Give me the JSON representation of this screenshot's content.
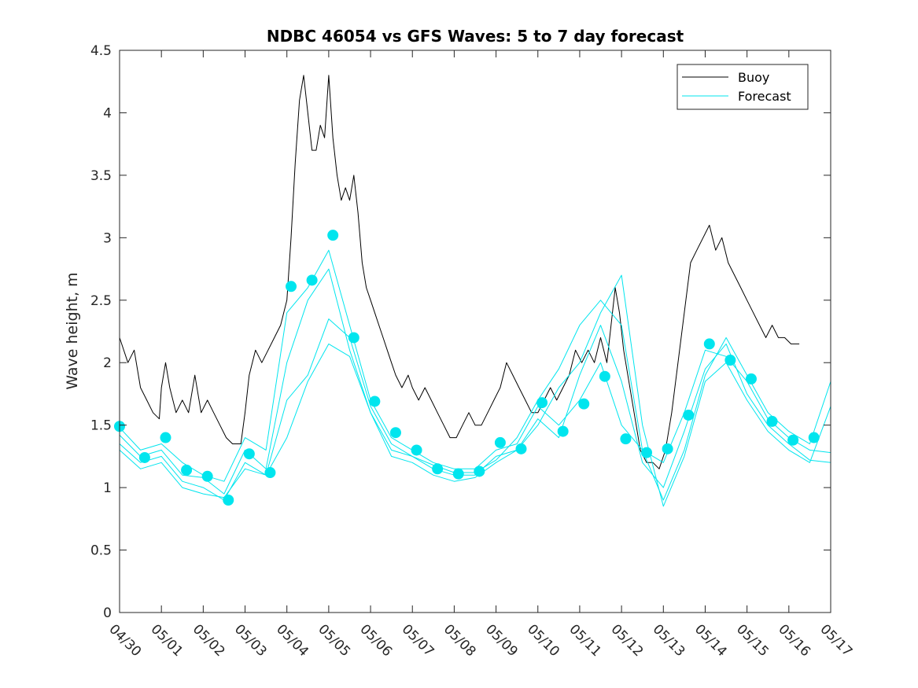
{
  "chart_data": {
    "type": "line",
    "title": "NDBC 46054 vs GFS Waves: 5 to 7 day forecast",
    "xlabel": "",
    "ylabel": "Wave height, m",
    "ylim": [
      0,
      4.5
    ],
    "yticks": [
      "0",
      "0.5",
      "1",
      "1.5",
      "2",
      "2.5",
      "3",
      "3.5",
      "4",
      "4.5"
    ],
    "xlim": [
      0,
      17
    ],
    "xtick_labels": [
      "04/30",
      "05/01",
      "05/02",
      "05/03",
      "05/04",
      "05/05",
      "05/06",
      "05/07",
      "05/08",
      "05/09",
      "05/10",
      "05/11",
      "05/12",
      "05/13",
      "05/14",
      "05/15",
      "05/16",
      "05/17"
    ],
    "grid": false,
    "legend": {
      "position": "top-right",
      "entries": [
        {
          "label": "Buoy",
          "color": "#000000"
        },
        {
          "label": "Forecast",
          "color": "#00e5ee"
        }
      ]
    },
    "series": [
      {
        "name": "Buoy",
        "color": "#000000",
        "points": [
          [
            0.0,
            2.2
          ],
          [
            0.2,
            2.0
          ],
          [
            0.35,
            2.1
          ],
          [
            0.5,
            1.8
          ],
          [
            0.65,
            1.7
          ],
          [
            0.8,
            1.6
          ],
          [
            0.95,
            1.55
          ],
          [
            1.0,
            1.8
          ],
          [
            1.1,
            2.0
          ],
          [
            1.2,
            1.8
          ],
          [
            1.35,
            1.6
          ],
          [
            1.5,
            1.7
          ],
          [
            1.65,
            1.6
          ],
          [
            1.8,
            1.9
          ],
          [
            1.95,
            1.6
          ],
          [
            2.1,
            1.7
          ],
          [
            2.25,
            1.6
          ],
          [
            2.4,
            1.5
          ],
          [
            2.55,
            1.4
          ],
          [
            2.7,
            1.35
          ],
          [
            2.9,
            1.35
          ],
          [
            3.0,
            1.6
          ],
          [
            3.1,
            1.9
          ],
          [
            3.25,
            2.1
          ],
          [
            3.4,
            2.0
          ],
          [
            3.55,
            2.1
          ],
          [
            3.7,
            2.2
          ],
          [
            3.85,
            2.3
          ],
          [
            4.0,
            2.5
          ],
          [
            4.1,
            3.0
          ],
          [
            4.2,
            3.6
          ],
          [
            4.3,
            4.1
          ],
          [
            4.4,
            4.3
          ],
          [
            4.5,
            4.0
          ],
          [
            4.6,
            3.7
          ],
          [
            4.7,
            3.7
          ],
          [
            4.8,
            3.9
          ],
          [
            4.9,
            3.8
          ],
          [
            5.0,
            4.3
          ],
          [
            5.1,
            3.8
          ],
          [
            5.2,
            3.5
          ],
          [
            5.3,
            3.3
          ],
          [
            5.4,
            3.4
          ],
          [
            5.5,
            3.3
          ],
          [
            5.6,
            3.5
          ],
          [
            5.7,
            3.2
          ],
          [
            5.8,
            2.8
          ],
          [
            5.9,
            2.6
          ],
          [
            6.0,
            2.5
          ],
          [
            6.1,
            2.4
          ],
          [
            6.2,
            2.3
          ],
          [
            6.3,
            2.2
          ],
          [
            6.4,
            2.1
          ],
          [
            6.5,
            2.0
          ],
          [
            6.6,
            1.9
          ],
          [
            6.75,
            1.8
          ],
          [
            6.9,
            1.9
          ],
          [
            7.0,
            1.8
          ],
          [
            7.15,
            1.7
          ],
          [
            7.3,
            1.8
          ],
          [
            7.45,
            1.7
          ],
          [
            7.6,
            1.6
          ],
          [
            7.75,
            1.5
          ],
          [
            7.9,
            1.4
          ],
          [
            8.05,
            1.4
          ],
          [
            8.2,
            1.5
          ],
          [
            8.35,
            1.6
          ],
          [
            8.5,
            1.5
          ],
          [
            8.65,
            1.5
          ],
          [
            8.8,
            1.6
          ],
          [
            8.95,
            1.7
          ],
          [
            9.1,
            1.8
          ],
          [
            9.25,
            2.0
          ],
          [
            9.4,
            1.9
          ],
          [
            9.55,
            1.8
          ],
          [
            9.7,
            1.7
          ],
          [
            9.85,
            1.6
          ],
          [
            10.0,
            1.6
          ],
          [
            10.15,
            1.7
          ],
          [
            10.3,
            1.8
          ],
          [
            10.45,
            1.7
          ],
          [
            10.6,
            1.8
          ],
          [
            10.75,
            1.9
          ],
          [
            10.9,
            2.1
          ],
          [
            11.05,
            2.0
          ],
          [
            11.2,
            2.1
          ],
          [
            11.35,
            2.0
          ],
          [
            11.5,
            2.2
          ],
          [
            11.65,
            2.0
          ],
          [
            11.75,
            2.3
          ],
          [
            11.85,
            2.6
          ],
          [
            11.95,
            2.4
          ],
          [
            12.05,
            2.1
          ],
          [
            12.15,
            1.9
          ],
          [
            12.3,
            1.6
          ],
          [
            12.45,
            1.3
          ],
          [
            12.6,
            1.2
          ],
          [
            12.75,
            1.2
          ],
          [
            12.9,
            1.15
          ],
          [
            13.05,
            1.3
          ],
          [
            13.2,
            1.6
          ],
          [
            13.35,
            2.0
          ],
          [
            13.5,
            2.4
          ],
          [
            13.65,
            2.8
          ],
          [
            13.8,
            2.9
          ],
          [
            13.95,
            3.0
          ],
          [
            14.1,
            3.1
          ],
          [
            14.25,
            2.9
          ],
          [
            14.4,
            3.0
          ],
          [
            14.55,
            2.8
          ],
          [
            14.7,
            2.7
          ],
          [
            14.85,
            2.6
          ],
          [
            15.0,
            2.5
          ],
          [
            15.15,
            2.4
          ],
          [
            15.3,
            2.3
          ],
          [
            15.45,
            2.2
          ],
          [
            15.6,
            2.3
          ],
          [
            15.75,
            2.2
          ],
          [
            15.9,
            2.2
          ],
          [
            16.05,
            2.15
          ],
          [
            16.25,
            2.15
          ]
        ]
      },
      {
        "name": "",
        "color": "#00e5ee",
        "points": [
          [
            0.0,
            1.48
          ],
          [
            0.5,
            1.3
          ],
          [
            1.0,
            1.35
          ],
          [
            1.5,
            1.2
          ],
          [
            2.0,
            1.1
          ],
          [
            2.5,
            1.05
          ],
          [
            3.0,
            1.4
          ],
          [
            3.5,
            1.3
          ],
          [
            4.0,
            2.4
          ],
          [
            4.5,
            2.6
          ],
          [
            5.0,
            2.9
          ],
          [
            5.5,
            2.3
          ],
          [
            6.0,
            1.7
          ],
          [
            6.5,
            1.4
          ],
          [
            7.0,
            1.3
          ],
          [
            7.5,
            1.2
          ],
          [
            8.0,
            1.15
          ],
          [
            8.5,
            1.15
          ],
          [
            9.0,
            1.3
          ],
          [
            9.5,
            1.35
          ],
          [
            10.0,
            1.65
          ],
          [
            10.5,
            1.5
          ],
          [
            11.0,
            1.7
          ],
          [
            11.5,
            2.0
          ],
          [
            12.0,
            1.5
          ],
          [
            12.5,
            1.3
          ],
          [
            13.0,
            1.2
          ],
          [
            13.5,
            1.6
          ],
          [
            14.0,
            2.1
          ],
          [
            14.5,
            2.05
          ],
          [
            15.0,
            1.85
          ],
          [
            15.5,
            1.55
          ],
          [
            16.0,
            1.4
          ],
          [
            16.5,
            1.3
          ],
          [
            17.0,
            1.28
          ]
        ]
      },
      {
        "name": "",
        "color": "#00e5ee",
        "points": [
          [
            0.0,
            1.42
          ],
          [
            0.5,
            1.25
          ],
          [
            1.0,
            1.3
          ],
          [
            1.5,
            1.1
          ],
          [
            2.0,
            1.08
          ],
          [
            2.5,
            0.95
          ],
          [
            3.0,
            1.3
          ],
          [
            3.5,
            1.15
          ],
          [
            4.0,
            2.0
          ],
          [
            4.5,
            2.5
          ],
          [
            5.0,
            2.75
          ],
          [
            5.5,
            2.1
          ],
          [
            6.0,
            1.6
          ],
          [
            6.5,
            1.3
          ],
          [
            7.0,
            1.25
          ],
          [
            7.5,
            1.15
          ],
          [
            8.0,
            1.1
          ],
          [
            8.5,
            1.1
          ],
          [
            9.0,
            1.25
          ],
          [
            9.5,
            1.3
          ],
          [
            10.0,
            1.55
          ],
          [
            10.5,
            1.4
          ],
          [
            11.0,
            1.9
          ],
          [
            11.5,
            2.3
          ],
          [
            12.0,
            1.85
          ],
          [
            12.5,
            1.2
          ],
          [
            13.0,
            1.0
          ],
          [
            13.5,
            1.45
          ],
          [
            14.0,
            1.95
          ],
          [
            14.5,
            2.15
          ],
          [
            15.0,
            1.75
          ],
          [
            15.5,
            1.5
          ],
          [
            16.0,
            1.35
          ],
          [
            16.5,
            1.22
          ],
          [
            17.0,
            1.2
          ]
        ]
      },
      {
        "name": "",
        "color": "#00e5ee",
        "points": [
          [
            0.0,
            1.35
          ],
          [
            0.5,
            1.2
          ],
          [
            1.0,
            1.25
          ],
          [
            1.5,
            1.05
          ],
          [
            2.0,
            1.0
          ],
          [
            2.5,
            0.9
          ],
          [
            3.0,
            1.2
          ],
          [
            3.5,
            1.1
          ],
          [
            4.0,
            1.7
          ],
          [
            4.5,
            1.9
          ],
          [
            5.0,
            2.35
          ],
          [
            5.5,
            2.2
          ],
          [
            6.0,
            1.65
          ],
          [
            6.5,
            1.35
          ],
          [
            7.0,
            1.25
          ],
          [
            7.5,
            1.18
          ],
          [
            8.0,
            1.12
          ],
          [
            8.5,
            1.12
          ],
          [
            9.0,
            1.22
          ],
          [
            9.5,
            1.4
          ],
          [
            10.0,
            1.7
          ],
          [
            10.5,
            1.95
          ],
          [
            11.0,
            2.3
          ],
          [
            11.5,
            2.5
          ],
          [
            12.0,
            2.3
          ],
          [
            12.5,
            1.3
          ],
          [
            13.0,
            0.9
          ],
          [
            13.5,
            1.3
          ],
          [
            14.0,
            1.9
          ],
          [
            14.5,
            2.2
          ],
          [
            15.0,
            1.9
          ],
          [
            15.5,
            1.6
          ],
          [
            16.0,
            1.45
          ],
          [
            16.5,
            1.35
          ],
          [
            17.0,
            1.85
          ]
        ]
      },
      {
        "name": "",
        "color": "#00e5ee",
        "points": [
          [
            0.0,
            1.3
          ],
          [
            0.5,
            1.15
          ],
          [
            1.0,
            1.2
          ],
          [
            1.5,
            1.0
          ],
          [
            2.0,
            0.95
          ],
          [
            2.5,
            0.92
          ],
          [
            3.0,
            1.15
          ],
          [
            3.5,
            1.1
          ],
          [
            4.0,
            1.4
          ],
          [
            4.5,
            1.85
          ],
          [
            5.0,
            2.15
          ],
          [
            5.5,
            2.05
          ],
          [
            6.0,
            1.6
          ],
          [
            6.5,
            1.25
          ],
          [
            7.0,
            1.2
          ],
          [
            7.5,
            1.1
          ],
          [
            8.0,
            1.05
          ],
          [
            8.5,
            1.08
          ],
          [
            9.0,
            1.2
          ],
          [
            9.5,
            1.3
          ],
          [
            10.0,
            1.5
          ],
          [
            10.5,
            1.8
          ],
          [
            11.0,
            2.0
          ],
          [
            11.5,
            2.4
          ],
          [
            12.0,
            2.7
          ],
          [
            12.5,
            1.5
          ],
          [
            13.0,
            0.85
          ],
          [
            13.5,
            1.25
          ],
          [
            14.0,
            1.85
          ],
          [
            14.5,
            2.0
          ],
          [
            15.0,
            1.7
          ],
          [
            15.5,
            1.45
          ],
          [
            16.0,
            1.3
          ],
          [
            16.5,
            1.2
          ],
          [
            17.0,
            1.65
          ]
        ]
      },
      {
        "name": "",
        "color": "#00e5ee",
        "markers": true,
        "points": [
          [
            0.0,
            1.49
          ],
          [
            0.6,
            1.24
          ],
          [
            1.1,
            1.4
          ],
          [
            1.6,
            1.14
          ],
          [
            2.1,
            1.09
          ],
          [
            2.6,
            0.9
          ],
          [
            3.1,
            1.27
          ],
          [
            3.6,
            1.12
          ],
          [
            4.1,
            2.61
          ],
          [
            4.6,
            2.66
          ],
          [
            5.1,
            3.02
          ],
          [
            5.6,
            2.2
          ],
          [
            6.1,
            1.69
          ],
          [
            6.6,
            1.44
          ],
          [
            7.1,
            1.3
          ],
          [
            7.6,
            1.15
          ],
          [
            8.1,
            1.11
          ],
          [
            8.6,
            1.13
          ],
          [
            9.1,
            1.36
          ],
          [
            9.6,
            1.31
          ],
          [
            10.1,
            1.68
          ],
          [
            10.6,
            1.45
          ],
          [
            11.1,
            1.67
          ],
          [
            11.6,
            1.89
          ],
          [
            12.1,
            1.39
          ],
          [
            12.6,
            1.28
          ],
          [
            13.1,
            1.31
          ],
          [
            13.6,
            1.58
          ],
          [
            14.1,
            2.15
          ],
          [
            14.6,
            2.02
          ],
          [
            15.1,
            1.87
          ],
          [
            15.6,
            1.53
          ],
          [
            16.1,
            1.38
          ],
          [
            16.6,
            1.4
          ]
        ]
      }
    ]
  }
}
